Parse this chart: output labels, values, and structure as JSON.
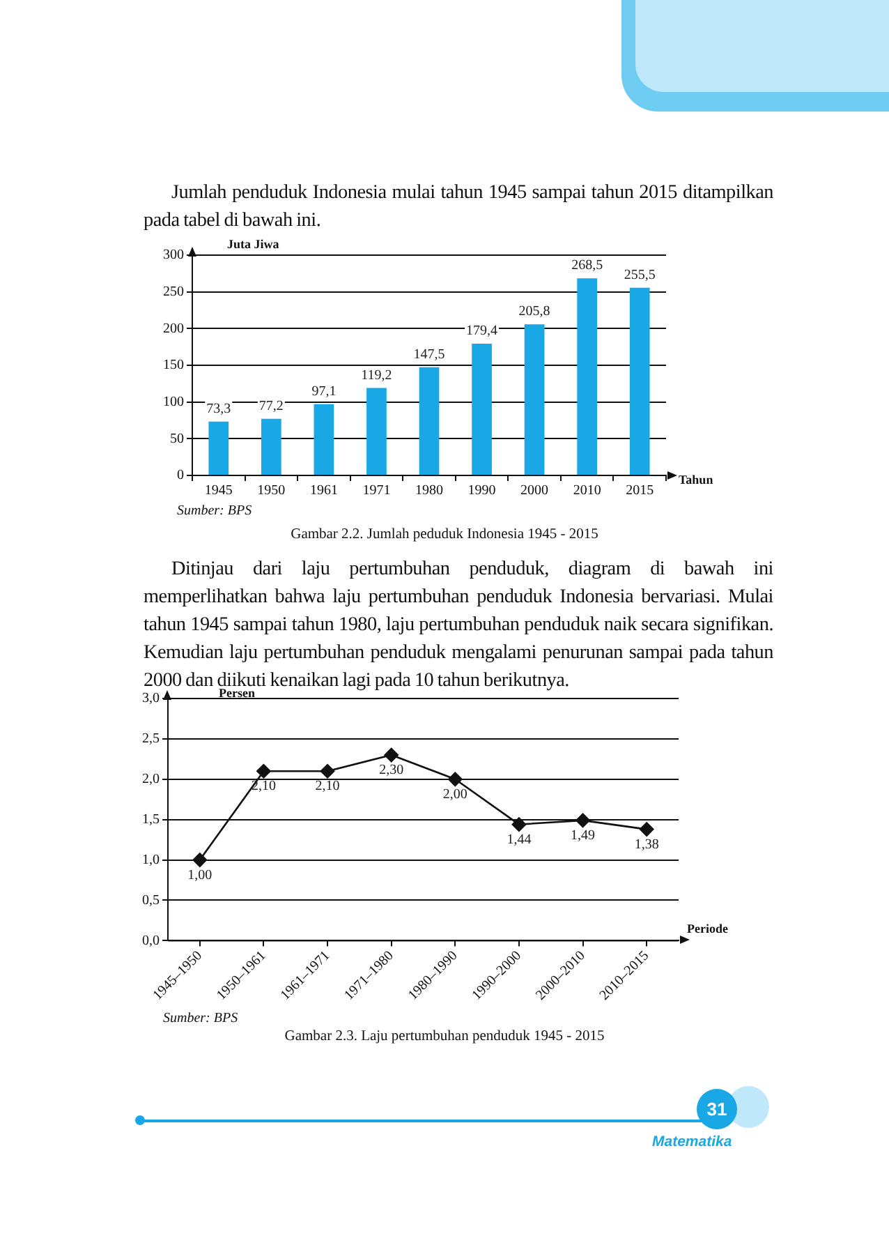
{
  "chart_data": [
    {
      "type": "bar",
      "title": "Gambar 2.2. Jumlah peduduk Indonesia 1945 - 2015",
      "xlabel": "Tahun",
      "ylabel": "Juta Jiwa",
      "annotations": [
        "Jumlah penduduk Indonesia mulai tahun 1945 sampai tahun 2015 ditampilkan pada tabel di bawah ini.",
        "Sumber: BPS"
      ],
      "categories": [
        "1945",
        "1950",
        "1961",
        "1971",
        "1980",
        "1990",
        "2000",
        "2010",
        "2015"
      ],
      "values": [
        73.3,
        77.2,
        97.1,
        119.2,
        147.5,
        179.4,
        205.8,
        268.5,
        255.5
      ],
      "value_labels": [
        "73,3",
        "77,2",
        "97,1",
        "119,2",
        "147,5",
        "179,4",
        "205,8",
        "268,5",
        "255,5"
      ],
      "color": "#1aa7e6",
      "ylim": [
        0,
        300
      ],
      "yticks": [
        0,
        50,
        100,
        150,
        200,
        250,
        300
      ],
      "grid": "y",
      "legend": false
    },
    {
      "type": "line",
      "title": "Gambar 2.3. Laju pertumbuhan penduduk 1945 - 2015",
      "xlabel": "Periode",
      "ylabel": "Persen",
      "annotations": [
        "Ditinjau dari laju pertumbuhan penduduk, diagram di bawah ini memperlihatkan bahwa laju pertumbuhan penduduk Indonesia bervariasi. Mulai tahun 1945 sampai tahun 1980, laju pertumbuhan penduduk naik secara signifikan. Kemudian laju pertumbuhan penduduk mengalami penurunan sampai pada tahun 2000 dan diikuti kenaikan lagi pada 10 tahun berikutnya.",
        "Sumber: BPS",
        "Matematika",
        "31"
      ],
      "categories": [
        "1945–1950",
        "1950–1961",
        "1961–1971",
        "1971–1980",
        "1980–1990",
        "1990–2000",
        "2000–2010",
        "2010–2015"
      ],
      "values": [
        1.0,
        2.1,
        2.1,
        2.3,
        2.0,
        1.44,
        1.49,
        1.38
      ],
      "value_labels": [
        "1,00",
        "2,10",
        "2,10",
        "2,30",
        "2,00",
        "1,44",
        "1,49",
        "1,38"
      ],
      "color": "#111111",
      "marker": "diamond",
      "line_style": "solid",
      "ylim": [
        0,
        3
      ],
      "yticks": [
        {
          "value": 0,
          "label": "0,0"
        },
        {
          "value": 0.5,
          "label": "0,5"
        },
        {
          "value": 1,
          "label": "1,0"
        },
        {
          "value": 1.5,
          "label": "1,5"
        },
        {
          "value": 2,
          "label": "2,0"
        },
        {
          "value": 2.5,
          "label": "2,5"
        },
        {
          "value": 3,
          "label": "3,0"
        }
      ],
      "grid": "y",
      "legend": false
    }
  ]
}
